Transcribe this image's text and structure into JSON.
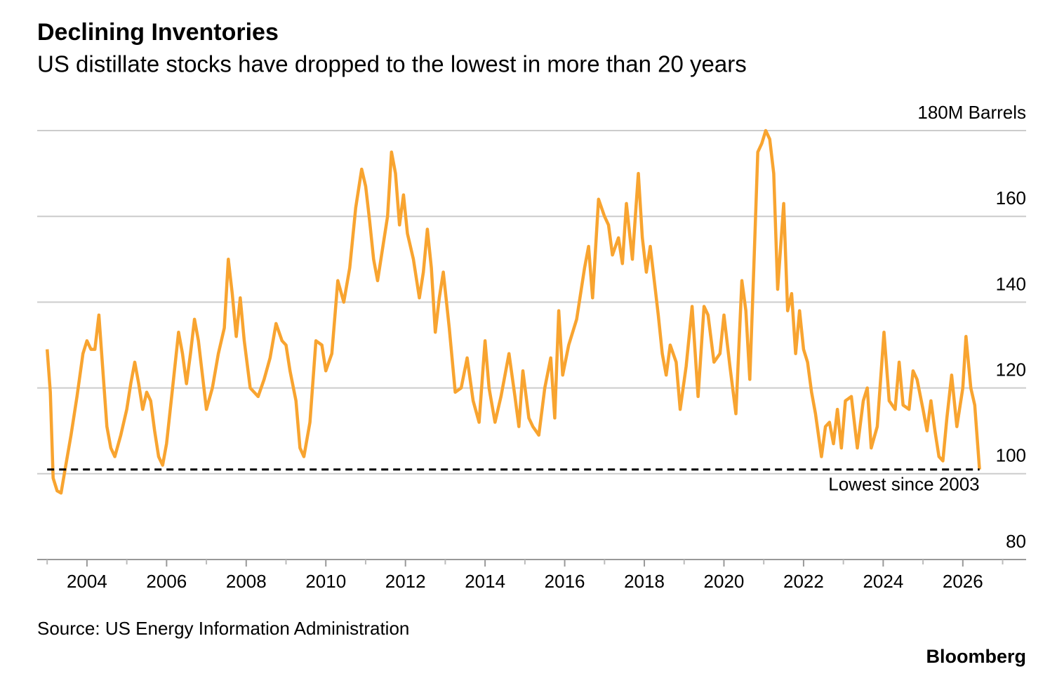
{
  "chart_data": {
    "type": "line",
    "title": "Declining Inventories",
    "subtitle": "US distillate stocks have dropped to the lowest in more than 20 years",
    "source": "Source: US Energy Information Administration",
    "brand": "Bloomberg",
    "annotation": {
      "text": "Lowest since 2003",
      "value": 101
    },
    "xlim": [
      2002.75,
      2027.59
    ],
    "ylim": [
      80,
      180
    ],
    "xticks": [
      2004,
      2006,
      2008,
      2010,
      2012,
      2014,
      2016,
      2018,
      2020,
      2022,
      2024,
      2026
    ],
    "yticks": [
      80,
      100,
      120,
      140,
      160,
      {
        "value": 180,
        "label": "180M Barrels"
      }
    ],
    "grid": true,
    "series": [
      {
        "color": "#f8a430",
        "x": [
          2003.0,
          2003.08,
          2003.15,
          2003.25,
          2003.35,
          2003.45,
          2003.6,
          2003.75,
          2003.9,
          2004.0,
          2004.1,
          2004.2,
          2004.3,
          2004.4,
          2004.5,
          2004.6,
          2004.7,
          2004.85,
          2005.0,
          2005.1,
          2005.2,
          2005.3,
          2005.4,
          2005.5,
          2005.6,
          2005.7,
          2005.8,
          2005.9,
          2006.0,
          2006.15,
          2006.3,
          2006.4,
          2006.5,
          2006.6,
          2006.7,
          2006.8,
          2006.9,
          2007.0,
          2007.15,
          2007.3,
          2007.45,
          2007.55,
          2007.65,
          2007.75,
          2007.85,
          2007.95,
          2008.1,
          2008.3,
          2008.45,
          2008.6,
          2008.75,
          2008.9,
          2009.0,
          2009.1,
          2009.25,
          2009.35,
          2009.45,
          2009.6,
          2009.75,
          2009.9,
          2010.0,
          2010.15,
          2010.3,
          2010.45,
          2010.6,
          2010.75,
          2010.9,
          2011.0,
          2011.1,
          2011.2,
          2011.3,
          2011.45,
          2011.55,
          2011.65,
          2011.75,
          2011.85,
          2011.95,
          2012.05,
          2012.2,
          2012.35,
          2012.45,
          2012.55,
          2012.65,
          2012.75,
          2012.85,
          2012.95,
          2013.1,
          2013.25,
          2013.4,
          2013.55,
          2013.7,
          2013.85,
          2014.0,
          2014.1,
          2014.25,
          2014.4,
          2014.6,
          2014.75,
          2014.85,
          2014.95,
          2015.1,
          2015.2,
          2015.35,
          2015.5,
          2015.65,
          2015.75,
          2015.85,
          2015.95,
          2016.1,
          2016.3,
          2016.5,
          2016.6,
          2016.7,
          2016.85,
          2017.0,
          2017.1,
          2017.2,
          2017.35,
          2017.45,
          2017.55,
          2017.7,
          2017.85,
          2017.95,
          2018.05,
          2018.15,
          2018.25,
          2018.35,
          2018.45,
          2018.55,
          2018.65,
          2018.8,
          2018.9,
          2019.05,
          2019.2,
          2019.35,
          2019.5,
          2019.6,
          2019.75,
          2019.9,
          2020.0,
          2020.15,
          2020.3,
          2020.45,
          2020.55,
          2020.65,
          2020.75,
          2020.85,
          2020.95,
          2021.05,
          2021.15,
          2021.25,
          2021.35,
          2021.5,
          2021.6,
          2021.7,
          2021.8,
          2021.9,
          2022.0,
          2022.1,
          2022.2,
          2022.3,
          2022.45,
          2022.55,
          2022.65,
          2022.75,
          2022.85,
          2022.95,
          2023.05,
          2023.2,
          2023.35,
          2023.5,
          2023.6,
          2023.7,
          2023.85,
          2024.02,
          2024.15,
          2024.3,
          2024.4,
          2024.5,
          2024.65,
          2024.75,
          2024.85,
          2025.0,
          2025.1,
          2025.2,
          2025.3,
          2025.4,
          2025.5,
          2025.6,
          2025.72,
          2025.85,
          2026.0,
          2026.08,
          2026.2,
          2026.3,
          2026.42
        ],
        "values": [
          129,
          119,
          99,
          96,
          95.5,
          101,
          109,
          118,
          128,
          131,
          129,
          129,
          137,
          124,
          111,
          106,
          104,
          109,
          115,
          121,
          126,
          121,
          115,
          119,
          117,
          110,
          104,
          102,
          107,
          120,
          133,
          128,
          121,
          128,
          136,
          131,
          123,
          115,
          120,
          128,
          134,
          150,
          142,
          132,
          141,
          131,
          120,
          118,
          122,
          127,
          135,
          131,
          130,
          124,
          117,
          106,
          104,
          112,
          131,
          130,
          124,
          128,
          145,
          140,
          148,
          162,
          171,
          167,
          159,
          150,
          145,
          154,
          160,
          175,
          170,
          158,
          165,
          156,
          150,
          141,
          147,
          157,
          148,
          133,
          141,
          147,
          134,
          119,
          120,
          127,
          117,
          112,
          131,
          120,
          112,
          118,
          128,
          118,
          111,
          124,
          113,
          111,
          109,
          120,
          127,
          113,
          138,
          123,
          130,
          136,
          148,
          153,
          141,
          164,
          160,
          158,
          151,
          155,
          149,
          163,
          150,
          170,
          155,
          147,
          153,
          145,
          137,
          128,
          123,
          130,
          126,
          115,
          125,
          139,
          118,
          139,
          137,
          126,
          128,
          137,
          125,
          114,
          145,
          138,
          122,
          148,
          175,
          177,
          180,
          178,
          170,
          143,
          163,
          138,
          142,
          128,
          138,
          129,
          126,
          119,
          114,
          104,
          111,
          112,
          107,
          115,
          106,
          117,
          118,
          106,
          117,
          120,
          106,
          111,
          133,
          117,
          115,
          126,
          116,
          115,
          124,
          122,
          115,
          110,
          117,
          110,
          104,
          103,
          113,
          123,
          111,
          120,
          132,
          120,
          116,
          101
        ]
      }
    ]
  }
}
